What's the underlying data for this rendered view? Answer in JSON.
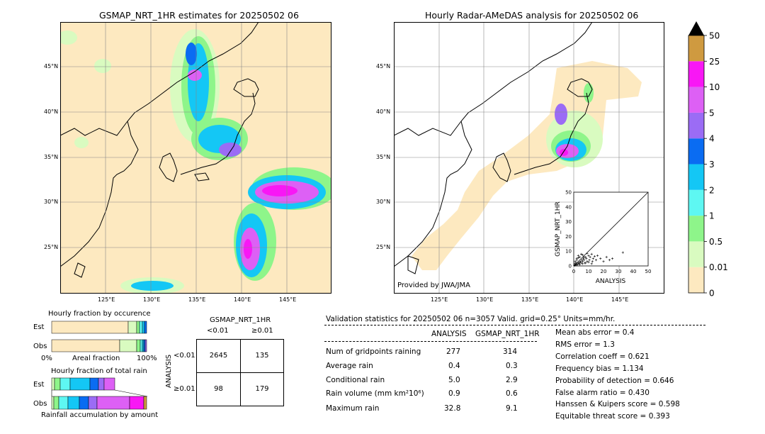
{
  "left_map": {
    "title": "GSMAP_NRT_1HR estimates for 20250502 06",
    "lat_labels": [
      "45°N",
      "40°N",
      "35°N",
      "30°N",
      "25°N"
    ],
    "lon_labels": [
      "125°E",
      "130°E",
      "135°E",
      "140°E",
      "145°E"
    ]
  },
  "right_map": {
    "title": "Hourly Radar-AMeDAS analysis for 20250502 06",
    "lat_labels": [
      "45°N",
      "40°N",
      "35°N",
      "30°N",
      "25°N"
    ],
    "lon_labels": [
      "125°E",
      "130°E",
      "135°E",
      "140°E",
      "145°E"
    ],
    "credit": "Provided by JWA/JMA"
  },
  "colorbar": {
    "levels": [
      "0",
      "0.01",
      "0.5",
      "1",
      "2",
      "3",
      "4",
      "5",
      "10",
      "25",
      "50"
    ],
    "colors": [
      "#fde9c0",
      "#d9fbc0",
      "#8ef58a",
      "#5ef7f2",
      "#14c7f5",
      "#0a6cf2",
      "#9b6cf5",
      "#dd60f5",
      "#f817f5",
      "#cf9a40",
      "#000000"
    ]
  },
  "occurrence": {
    "title": "Hourly fraction by occurence",
    "est_label": "Est",
    "obs_label": "Obs",
    "axis_left": "0%",
    "axis_mid": "Areal fraction",
    "axis_right": "100%"
  },
  "total_rain": {
    "title": "Hourly fraction of total rain",
    "est_label": "Est",
    "obs_label": "Obs",
    "footer": "Rainfall accumulation by amount"
  },
  "contingency": {
    "title": "GSMAP_NRT_1HR",
    "col1": "<0.01",
    "col2": "≥0.01",
    "row_axis": "ANALYSIS",
    "row1": "<0.01",
    "row2": "≥0.01",
    "cells": [
      "2645",
      "135",
      "98",
      "179"
    ]
  },
  "validation": {
    "header": "Validation statistics for 20250502 06  n=3057 Valid. grid=0.25° Units=mm/hr.",
    "col_analysis": "ANALYSIS",
    "col_gsmap": "GSMAP_NRT_1HR",
    "rows": [
      {
        "label": "Num of gridpoints raining",
        "analysis": "277",
        "gsmap": "314"
      },
      {
        "label": "Average rain",
        "analysis": "0.4",
        "gsmap": "0.3"
      },
      {
        "label": "Conditional rain",
        "analysis": "5.0",
        "gsmap": "2.9"
      },
      {
        "label": "Rain volume (mm km²10⁶)",
        "analysis": "0.9",
        "gsmap": "0.6"
      },
      {
        "label": "Maximum rain",
        "analysis": "32.8",
        "gsmap": "9.1"
      }
    ],
    "scores": [
      "Mean abs error =    0.4",
      "RMS error =    1.3",
      "Correlation coeff =  0.621",
      "Frequency bias =  1.134",
      "Probability of detection =  0.646",
      "False alarm ratio =  0.430",
      "Hanssen & Kuipers score =  0.598",
      "Equitable threat score =  0.393"
    ]
  },
  "chart_data": {
    "type": "scatter",
    "xlabel": "ANALYSIS",
    "ylabel": "GSMAP_NRT_1HR",
    "xlim": [
      0,
      50
    ],
    "ylim": [
      0,
      50
    ],
    "xticks": [
      "0",
      "10",
      "20",
      "30",
      "40",
      "50"
    ],
    "yticks": [
      "0",
      "10",
      "20",
      "30",
      "40",
      "50"
    ],
    "points": [
      [
        0.5,
        0.3
      ],
      [
        1,
        0.8
      ],
      [
        1.5,
        0.5
      ],
      [
        2,
        1.2
      ],
      [
        2.5,
        1
      ],
      [
        3,
        2
      ],
      [
        3.5,
        1.5
      ],
      [
        4,
        2.5
      ],
      [
        4.5,
        3
      ],
      [
        5,
        2
      ],
      [
        5.5,
        4
      ],
      [
        6,
        3
      ],
      [
        6.5,
        5
      ],
      [
        7,
        4
      ],
      [
        7.5,
        2
      ],
      [
        8,
        6
      ],
      [
        8.5,
        5
      ],
      [
        9,
        3
      ],
      [
        10,
        7
      ],
      [
        10.5,
        4
      ],
      [
        11,
        6
      ],
      [
        12,
        8
      ],
      [
        12.5,
        3
      ],
      [
        13,
        5
      ],
      [
        14,
        6.5
      ],
      [
        15,
        4
      ],
      [
        16,
        7
      ],
      [
        18,
        5
      ],
      [
        20,
        3
      ],
      [
        22,
        6
      ],
      [
        24,
        4
      ],
      [
        26,
        5
      ],
      [
        33,
        9.1
      ],
      [
        3,
        7
      ],
      [
        5,
        8
      ],
      [
        7,
        6
      ],
      [
        2,
        5
      ],
      [
        4,
        6
      ],
      [
        6,
        7.5
      ],
      [
        9,
        8.5
      ],
      [
        1,
        3
      ],
      [
        2,
        4
      ],
      [
        3,
        5.5
      ],
      [
        8,
        2
      ],
      [
        10,
        2.5
      ],
      [
        12,
        1.5
      ],
      [
        1.5,
        2
      ],
      [
        0.8,
        1.5
      ],
      [
        4,
        1
      ],
      [
        6,
        1.5
      ]
    ]
  }
}
